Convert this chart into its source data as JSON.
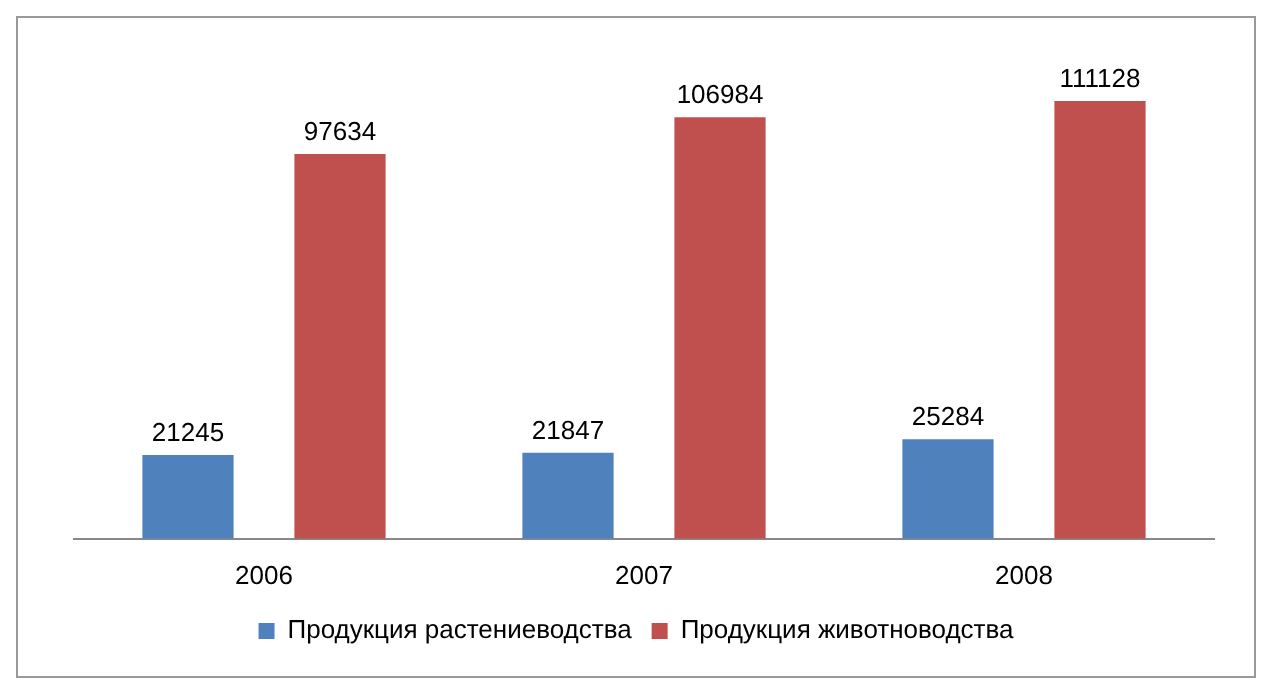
{
  "chart_data": {
    "type": "bar",
    "categories": [
      "2006",
      "2007",
      "2008"
    ],
    "series": [
      {
        "name": "Продукция растениеводства",
        "color": "#4f81bd",
        "values": [
          21245,
          21847,
          25284
        ]
      },
      {
        "name": "Продукция животноводства",
        "color": "#c0504d",
        "values": [
          97634,
          106984,
          111128
        ]
      }
    ],
    "data_labels": true,
    "legend": "bottom",
    "grid": false,
    "tick_labels": "x"
  }
}
